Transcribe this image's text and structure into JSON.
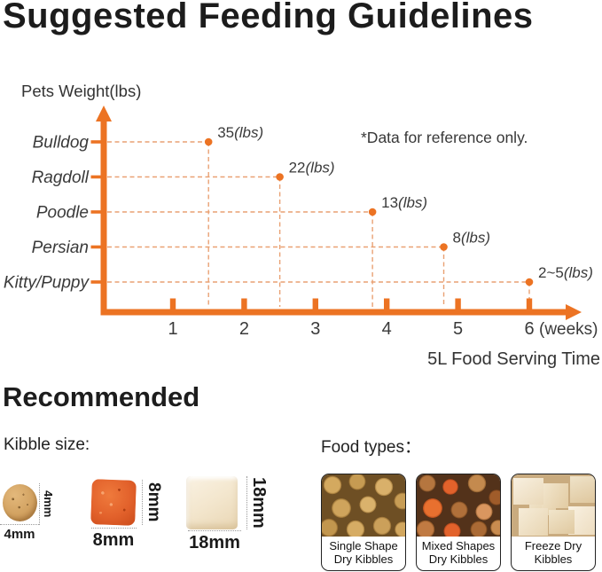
{
  "title": "Suggested Feeding Guidelines",
  "chart_data": {
    "type": "scatter",
    "title": "Suggested Feeding Guidelines",
    "ylabel": "Pets Weight(lbs)",
    "xlabel": "5L Food Serving Time",
    "x_unit_label": "(weeks)",
    "note": "*Data for reference only.",
    "categories": [
      "Bulldog",
      "Ragdoll",
      "Poodle",
      "Persian",
      "Kitty/Puppy"
    ],
    "x_ticks": [
      1,
      2,
      3,
      4,
      5,
      6
    ],
    "xlim": [
      0,
      6.5
    ],
    "grid": "off",
    "points": [
      {
        "category": "Bulldog",
        "weeks": 1.5,
        "value": "35",
        "unit": "(lbs)"
      },
      {
        "category": "Ragdoll",
        "weeks": 2.5,
        "value": "22",
        "unit": "(lbs)"
      },
      {
        "category": "Poodle",
        "weeks": 3.8,
        "value": "13",
        "unit": "(lbs)"
      },
      {
        "category": "Persian",
        "weeks": 4.8,
        "value": "8",
        "unit": "(lbs)"
      },
      {
        "category": "Kitty/Puppy",
        "weeks": 6,
        "value": "2~5",
        "unit": "(lbs)"
      }
    ]
  },
  "recommended": {
    "heading": "Recommended",
    "kibble_size": {
      "label": "Kibble size:",
      "items": [
        {
          "shape": "round-kibble",
          "bottom_label": "4mm",
          "side_label": "4mm"
        },
        {
          "shape": "square-kibble",
          "bottom_label": "8mm",
          "side_label": "8mm"
        },
        {
          "shape": "cube-kibble",
          "bottom_label": "18mm",
          "side_label": "18mm"
        }
      ]
    },
    "food_types": {
      "label": "Food types：",
      "cards": [
        {
          "caption_line1": "Single Shape",
          "caption_line2": "Dry Kibbles"
        },
        {
          "caption_line1": "Mixed Shapes",
          "caption_line2": "Dry Kibbles"
        },
        {
          "caption_line1": "Freeze Dry",
          "caption_line2": "Kibbles"
        }
      ]
    }
  },
  "colors": {
    "axis_orange": "#EC7323",
    "dash_orange": "#E9A173",
    "chart_text": "#3A3A3A",
    "title_text": "#1C1C1C",
    "measure_line_gray": "#999999"
  }
}
